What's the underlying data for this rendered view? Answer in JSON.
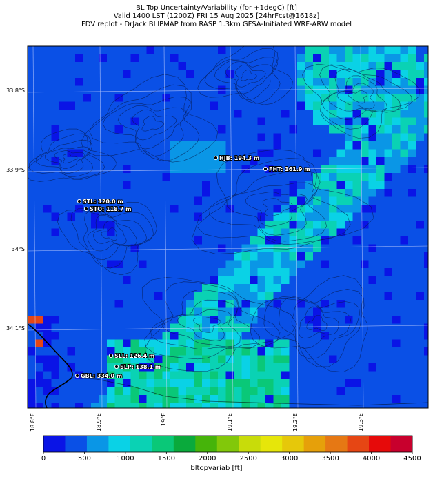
{
  "titles": [
    "BL Top Uncertainty/Variability (for +1degC) [ft]",
    "Valid 1400 LST (1200Z) FRI 15 Aug 2025 [24hrFcst@1618z]",
    "FDV replot - DrJack BLIPMAP from RASP 1.3km GFSA-Initiated WRF-ARW model"
  ],
  "lat_labels": [
    "33.8°S",
    "33.9°S",
    "34°S",
    "34.1°S"
  ],
  "lon_labels": [
    "18.8°E",
    "18.9°E",
    "19°E",
    "19.1°E",
    "19.2°E",
    "19.3°E"
  ],
  "stations": [
    {
      "label": "HJB: 194.3 m"
    },
    {
      "label": "FHT: 161.9 m"
    },
    {
      "label": "STL: 120.0 m"
    },
    {
      "label": "STO: 118.7 m"
    },
    {
      "label": "SLL: 126.4 m"
    },
    {
      "label": "SLP: 138.1 m"
    },
    {
      "label": "GBL: 334.0 m"
    }
  ],
  "colorbar": {
    "label": "bltopvariab [ft]",
    "ticks": [
      "0",
      "500",
      "1000",
      "1500",
      "2000",
      "2500",
      "3000",
      "3500",
      "4000",
      "4500"
    ],
    "colors": [
      "#0a14e6",
      "#0a50e6",
      "#0a96e6",
      "#0ad2e6",
      "#0ad2b4",
      "#0ac878",
      "#0aaa3c",
      "#46b40a",
      "#82c80a",
      "#c8dc0a",
      "#e6e60a",
      "#e6c80a",
      "#e6a00a",
      "#e67814",
      "#e64614",
      "#e60a0a",
      "#c8002d"
    ]
  }
}
